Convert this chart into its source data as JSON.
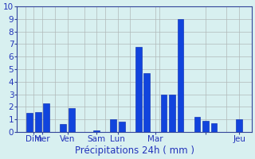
{
  "bars": [
    {
      "x": 1,
      "height": 1.5
    },
    {
      "x": 2,
      "height": 1.6
    },
    {
      "x": 3,
      "height": 2.3
    },
    {
      "x": 5,
      "height": 0.6
    },
    {
      "x": 6,
      "height": 1.9
    },
    {
      "x": 9,
      "height": 0.1
    },
    {
      "x": 11,
      "height": 1.0
    },
    {
      "x": 12,
      "height": 0.8
    },
    {
      "x": 14,
      "height": 6.8
    },
    {
      "x": 15,
      "height": 4.7
    },
    {
      "x": 17,
      "height": 3.0
    },
    {
      "x": 18,
      "height": 3.0
    },
    {
      "x": 19,
      "height": 9.0
    },
    {
      "x": 21,
      "height": 1.2
    },
    {
      "x": 22,
      "height": 0.9
    },
    {
      "x": 23,
      "height": 0.7
    },
    {
      "x": 26,
      "height": 1.0
    }
  ],
  "bar_color": "#1144dd",
  "bar_edge_color": "#0022aa",
  "bar_width": 0.75,
  "xlabel": "Précipitations 24h ( mm )",
  "ylim": [
    0,
    10
  ],
  "yticks": [
    0,
    1,
    2,
    3,
    4,
    5,
    6,
    7,
    8,
    9,
    10
  ],
  "day_tick_positions": [
    1.5,
    2.5,
    5.5,
    9.0,
    11.5,
    16.0,
    22.0,
    26.0
  ],
  "day_tick_labels": [
    "Dim",
    "Mer",
    "Ven",
    "Sam",
    "Lun",
    "Mar",
    "",
    "Jeu"
  ],
  "vline_positions": [
    0.5,
    4.0,
    7.5,
    10.0,
    13.0,
    16.5,
    24.5
  ],
  "grid_color": "#b0b8b8",
  "bg_color": "#d8f0f0",
  "xlabel_fontsize": 8.5,
  "tick_fontsize": 7.5,
  "tick_color": "#2233bb",
  "spine_color": "#334499",
  "xlim": [
    -0.5,
    27.5
  ],
  "total_x": 28
}
